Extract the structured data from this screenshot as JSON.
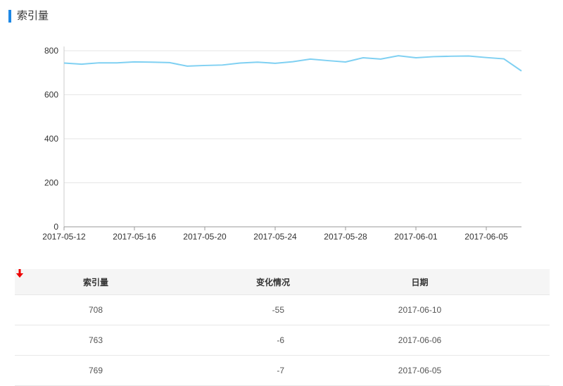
{
  "header": {
    "title": "索引量"
  },
  "chart_data": {
    "type": "line",
    "categories": [
      "2017-05-12",
      null,
      null,
      null,
      "2017-05-16",
      null,
      null,
      null,
      "2017-05-20",
      null,
      null,
      null,
      "2017-05-24",
      null,
      null,
      null,
      "2017-05-28",
      null,
      null,
      null,
      "2017-06-01",
      null,
      null,
      null,
      "2017-06-05",
      null,
      null
    ],
    "series": [
      {
        "name": "索引量",
        "color": "#7fd0f2",
        "values": [
          744,
          739,
          745,
          745,
          749,
          748,
          746,
          730,
          733,
          735,
          744,
          748,
          743,
          750,
          762,
          755,
          749,
          768,
          762,
          777,
          768,
          773,
          775,
          776,
          769,
          763,
          708
        ]
      }
    ],
    "ylim": [
      0,
      800
    ],
    "yticks": [
      0,
      200,
      400,
      600,
      800
    ],
    "grid": true
  },
  "table": {
    "columns": [
      "索引量",
      "变化情况",
      "日期"
    ],
    "rows": [
      [
        708,
        -55,
        "2017-06-10"
      ],
      [
        763,
        -6,
        "2017-06-06"
      ],
      [
        769,
        -7,
        "2017-06-05"
      ]
    ]
  }
}
